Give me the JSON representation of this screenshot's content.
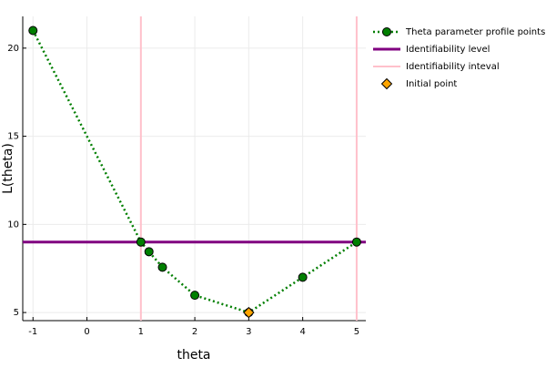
{
  "chart_data": {
    "type": "line",
    "x_label": "theta",
    "y_label": "L(theta)",
    "xlim": [
      -1.19,
      5.17
    ],
    "ylim": [
      4.54,
      21.8
    ],
    "xticks": [
      -1,
      0,
      1,
      2,
      3,
      4,
      5
    ],
    "yticks": [
      5,
      10,
      15,
      20
    ],
    "grid": true,
    "legend": "outside-right",
    "series": [
      {
        "name": "Theta parameter profile points",
        "color": "#007f00",
        "style": "line",
        "x": [
          -1,
          1,
          1.15,
          1.4,
          2,
          3,
          4,
          5
        ],
        "values": [
          21,
          9,
          8.45,
          7.57,
          5.98,
          5,
          7,
          9
        ]
      },
      {
        "name": "Identifiability level",
        "color": "#800080",
        "style": "hline",
        "values": [
          9
        ]
      },
      {
        "name": "Identifiability inteval",
        "color": "#ffc0cb",
        "style": "vline",
        "x": [
          1,
          5
        ]
      },
      {
        "name": "Initial point",
        "color": "#ffa500",
        "style": "scatter",
        "x": [
          3
        ],
        "values": [
          5
        ]
      }
    ]
  }
}
